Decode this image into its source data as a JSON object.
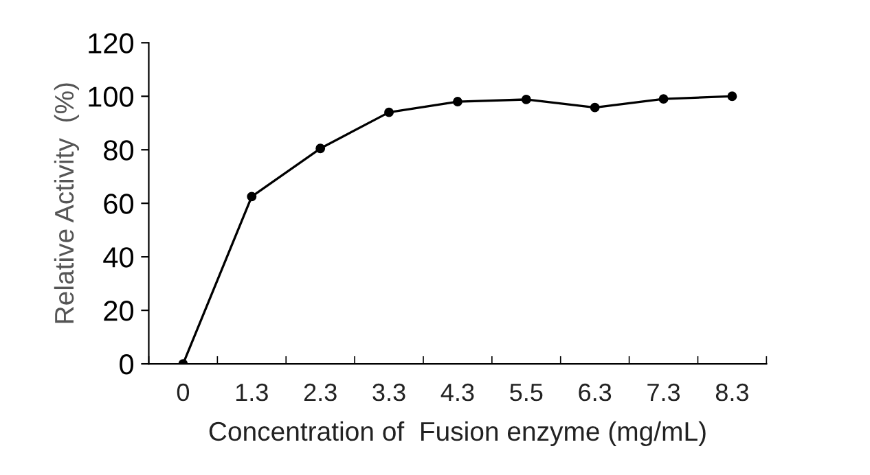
{
  "chart_data": {
    "type": "line",
    "xlabel": "Concentration of  Fusion enzyme (mg/mL)",
    "ylabel": "Relative Activity  (%)",
    "categories": [
      "0",
      "1.3",
      "2.3",
      "3.3",
      "4.3",
      "5.5",
      "6.3",
      "7.3",
      "8.3"
    ],
    "series": [
      {
        "color": "#000000",
        "values": [
          0,
          62.5,
          80.5,
          94,
          98,
          98.8,
          95.8,
          99,
          100
        ]
      }
    ],
    "ylim": [
      0,
      120
    ],
    "yticks": [
      0,
      20,
      40,
      60,
      80,
      100,
      120
    ],
    "grid": false,
    "legend": false,
    "marker": "circle",
    "line_style": "solid"
  }
}
